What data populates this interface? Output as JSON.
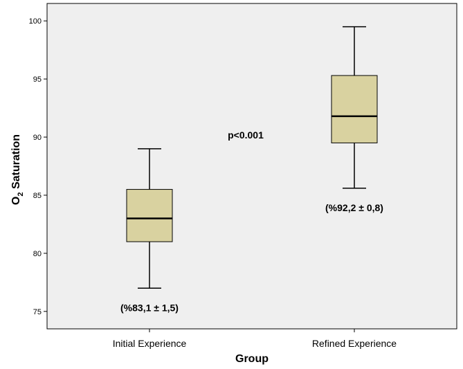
{
  "chart_data": {
    "type": "box",
    "xlabel": "Group",
    "ylabel_main": "O",
    "ylabel_sub": "2",
    "ylabel_rest": " Saturation",
    "ylim": [
      73.5,
      101.5
    ],
    "yticks": [
      75,
      80,
      85,
      90,
      95,
      100
    ],
    "grid": false,
    "categories": [
      "Initial Experience",
      "Refined Experience"
    ],
    "boxes": [
      {
        "category": "Initial Experience",
        "min": 77,
        "q1": 81,
        "median": 83,
        "q3": 85.5,
        "max": 89,
        "annotation": "(%83,1 ± 1,5)"
      },
      {
        "category": "Refined Experience",
        "min": 85.6,
        "q1": 89.5,
        "median": 91.8,
        "q3": 95.3,
        "max": 99.5,
        "annotation": "(%92,2 ± 0,8)"
      }
    ],
    "p_value_label": "p<0.001",
    "colors": {
      "plot_background": "#efefef",
      "box_fill": "#d9d2a0",
      "outline": "#000000"
    }
  }
}
